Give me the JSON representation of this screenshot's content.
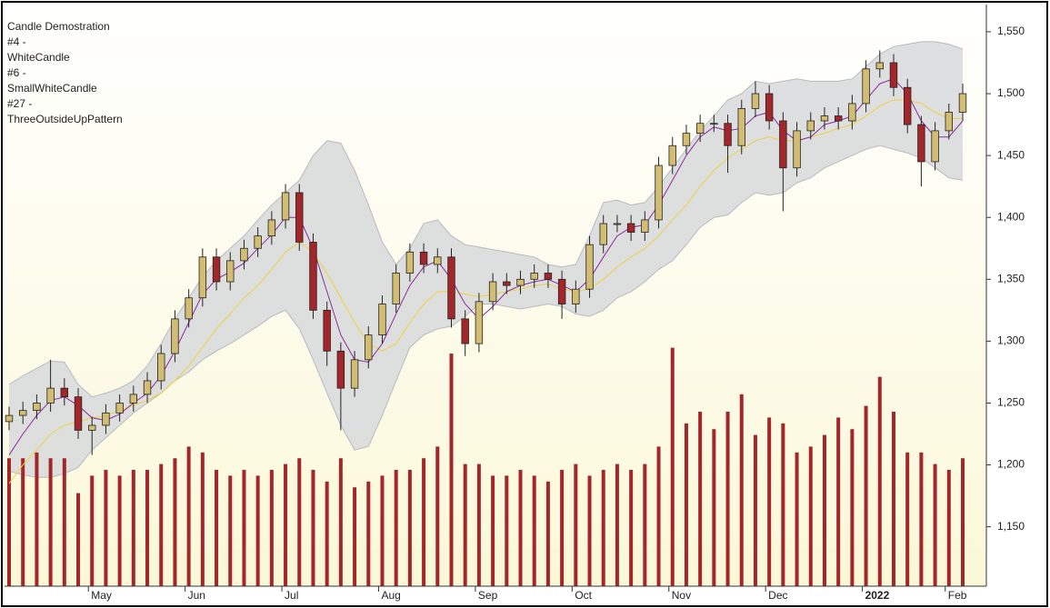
{
  "chart_data": {
    "type": "candlestick",
    "annotations": [
      "Candle Demostration",
      "#4 -",
      "WhiteCandle",
      "#6 -",
      "SmallWhiteCandle",
      "#27 -",
      "ThreeOutsideUpPattern"
    ],
    "categories": [
      null,
      null,
      null,
      null,
      null,
      null,
      "May",
      null,
      null,
      null,
      null,
      null,
      null,
      "Jun",
      null,
      null,
      null,
      null,
      null,
      null,
      "Jul",
      null,
      null,
      null,
      null,
      null,
      null,
      "Aug",
      null,
      null,
      null,
      null,
      null,
      null,
      "Sep",
      null,
      null,
      null,
      null,
      null,
      null,
      "Oct",
      null,
      null,
      null,
      null,
      null,
      null,
      "Nov",
      null,
      null,
      null,
      null,
      null,
      null,
      "Dec",
      null,
      null,
      null,
      null,
      null,
      null,
      "2022",
      null,
      null,
      null,
      null,
      null,
      "Feb",
      null
    ],
    "open": [
      1235,
      1240,
      1244,
      1250,
      1262,
      1255,
      1228,
      1232,
      1242,
      1250,
      1257,
      1268,
      1290,
      1318,
      1335,
      1368,
      1348,
      1365,
      1375,
      1385,
      1398,
      1420,
      1380,
      1325,
      1292,
      1262,
      1285,
      1305,
      1330,
      1355,
      1372,
      1362,
      1368,
      1318,
      1298,
      1332,
      1348,
      1345,
      1350,
      1355,
      1350,
      1330,
      1342,
      1378,
      1395,
      1395,
      1388,
      1398,
      1442,
      1458,
      1468,
      1476,
      1476,
      1458,
      1488,
      1500,
      1478,
      1440,
      1470,
      1478,
      1482,
      1478,
      1492,
      1520,
      1525,
      1505,
      1475,
      1445,
      1470,
      1485
    ],
    "high": [
      1247,
      1251,
      1257,
      1285,
      1270,
      1262,
      1239,
      1249,
      1257,
      1264,
      1275,
      1297,
      1325,
      1342,
      1375,
      1375,
      1372,
      1382,
      1392,
      1405,
      1427,
      1427,
      1387,
      1332,
      1299,
      1292,
      1312,
      1337,
      1362,
      1379,
      1379,
      1375,
      1375,
      1325,
      1339,
      1355,
      1355,
      1357,
      1362,
      1362,
      1357,
      1349,
      1385,
      1402,
      1402,
      1402,
      1405,
      1449,
      1465,
      1475,
      1483,
      1483,
      1483,
      1495,
      1510,
      1507,
      1485,
      1477,
      1485,
      1489,
      1489,
      1499,
      1527,
      1535,
      1532,
      1512,
      1482,
      1477,
      1492,
      1508
    ],
    "low": [
      1228,
      1233,
      1237,
      1243,
      1248,
      1221,
      1208,
      1225,
      1235,
      1243,
      1250,
      1261,
      1283,
      1311,
      1328,
      1341,
      1341,
      1358,
      1368,
      1378,
      1391,
      1373,
      1318,
      1280,
      1228,
      1255,
      1278,
      1298,
      1323,
      1348,
      1355,
      1355,
      1311,
      1288,
      1291,
      1325,
      1338,
      1338,
      1343,
      1343,
      1318,
      1323,
      1335,
      1371,
      1388,
      1381,
      1381,
      1391,
      1435,
      1451,
      1461,
      1469,
      1436,
      1451,
      1481,
      1471,
      1405,
      1433,
      1463,
      1471,
      1471,
      1471,
      1485,
      1513,
      1498,
      1468,
      1425,
      1438,
      1463,
      1478
    ],
    "close": [
      1240,
      1244,
      1250,
      1262,
      1255,
      1228,
      1232,
      1242,
      1250,
      1257,
      1268,
      1290,
      1318,
      1335,
      1368,
      1348,
      1365,
      1375,
      1385,
      1398,
      1420,
      1380,
      1325,
      1292,
      1262,
      1285,
      1305,
      1330,
      1355,
      1372,
      1362,
      1368,
      1318,
      1298,
      1332,
      1348,
      1345,
      1350,
      1355,
      1350,
      1330,
      1342,
      1378,
      1395,
      1395,
      1388,
      1398,
      1442,
      1458,
      1468,
      1476,
      1476,
      1458,
      1488,
      1500,
      1478,
      1440,
      1470,
      1478,
      1482,
      1478,
      1492,
      1520,
      1525,
      1505,
      1475,
      1445,
      1470,
      1485,
      1500
    ],
    "upper_band": [
      1265,
      1272,
      1278,
      1284,
      1283,
      1265,
      1255,
      1258,
      1262,
      1268,
      1280,
      1298,
      1318,
      1335,
      1352,
      1365,
      1375,
      1385,
      1398,
      1410,
      1420,
      1430,
      1450,
      1462,
      1460,
      1438,
      1410,
      1380,
      1362,
      1375,
      1395,
      1398,
      1385,
      1378,
      1376,
      1374,
      1372,
      1370,
      1368,
      1362,
      1360,
      1362,
      1385,
      1412,
      1414,
      1410,
      1412,
      1425,
      1440,
      1455,
      1470,
      1482,
      1495,
      1500,
      1510,
      1508,
      1510,
      1512,
      1510,
      1510,
      1510,
      1512,
      1522,
      1532,
      1538,
      1540,
      1542,
      1542,
      1540,
      1536
    ],
    "lower_band": [
      1195,
      1192,
      1190,
      1190,
      1193,
      1198,
      1212,
      1222,
      1232,
      1242,
      1250,
      1258,
      1268,
      1275,
      1285,
      1292,
      1298,
      1305,
      1312,
      1320,
      1325,
      1310,
      1285,
      1258,
      1232,
      1212,
      1215,
      1240,
      1268,
      1295,
      1305,
      1310,
      1312,
      1320,
      1330,
      1330,
      1328,
      1326,
      1328,
      1330,
      1328,
      1322,
      1320,
      1325,
      1335,
      1340,
      1348,
      1358,
      1365,
      1378,
      1392,
      1400,
      1402,
      1412,
      1420,
      1418,
      1420,
      1428,
      1432,
      1440,
      1445,
      1450,
      1455,
      1458,
      1455,
      1452,
      1448,
      1440,
      1432,
      1430
    ],
    "fast_ma": [
      1208,
      1225,
      1240,
      1252,
      1255,
      1248,
      1238,
      1236,
      1241,
      1250,
      1258,
      1272,
      1292,
      1315,
      1338,
      1350,
      1356,
      1363,
      1375,
      1386,
      1400,
      1400,
      1375,
      1340,
      1305,
      1285,
      1283,
      1298,
      1322,
      1345,
      1360,
      1365,
      1350,
      1330,
      1318,
      1328,
      1340,
      1345,
      1348,
      1350,
      1345,
      1340,
      1350,
      1368,
      1385,
      1392,
      1394,
      1410,
      1430,
      1450,
      1465,
      1473,
      1470,
      1472,
      1482,
      1485,
      1470,
      1462,
      1465,
      1475,
      1478,
      1482,
      1495,
      1508,
      1512,
      1500,
      1478,
      1465,
      1465,
      1478
    ],
    "slow_ma": [
      1185,
      1200,
      1212,
      1225,
      1232,
      1235,
      1238,
      1240,
      1244,
      1248,
      1252,
      1258,
      1268,
      1280,
      1295,
      1310,
      1322,
      1335,
      1345,
      1358,
      1372,
      1380,
      1372,
      1355,
      1335,
      1315,
      1298,
      1292,
      1298,
      1315,
      1330,
      1340,
      1340,
      1338,
      1336,
      1338,
      1340,
      1342,
      1345,
      1346,
      1342,
      1340,
      1342,
      1350,
      1360,
      1368,
      1375,
      1385,
      1398,
      1410,
      1425,
      1438,
      1448,
      1455,
      1462,
      1465,
      1462,
      1462,
      1465,
      1468,
      1472,
      1475,
      1482,
      1490,
      1495,
      1495,
      1492,
      1485,
      1480,
      1480
    ],
    "volume": [
      22,
      22,
      23,
      22,
      22,
      16,
      19,
      20,
      19,
      20,
      20,
      21,
      22,
      24,
      23,
      20,
      19,
      20,
      19,
      20,
      21,
      22,
      20,
      18,
      22,
      17,
      18,
      19,
      20,
      20,
      22,
      24,
      40,
      21,
      21,
      19,
      19,
      20,
      19,
      18,
      20,
      21,
      19,
      20,
      21,
      20,
      21,
      24,
      41,
      28,
      30,
      27,
      30,
      33,
      26,
      29,
      28,
      23,
      24,
      26,
      29,
      27,
      31,
      36,
      30,
      23,
      23,
      21,
      20,
      22
    ],
    "up_color": "#d2bd72",
    "down_color": "#a3262a",
    "volume_color": "#a3262a",
    "band_color": "#d9dbdd",
    "fast_ma_color": "#8b2a9b",
    "slow_ma_color": "#f0d040",
    "ylim": [
      1102,
      1572
    ],
    "y2lim": [
      0,
      100
    ],
    "yticks": [
      {
        "value": 1150,
        "label": "1,150"
      },
      {
        "value": 1200,
        "label": "1,200"
      },
      {
        "value": 1250,
        "label": "1,250"
      },
      {
        "value": 1300,
        "label": "1,300"
      },
      {
        "value": 1350,
        "label": "1,350"
      },
      {
        "value": 1400,
        "label": "1,400"
      },
      {
        "value": 1450,
        "label": "1,450"
      },
      {
        "value": 1500,
        "label": "1,500"
      },
      {
        "value": 1550,
        "label": "1,550"
      }
    ],
    "grid": false
  }
}
